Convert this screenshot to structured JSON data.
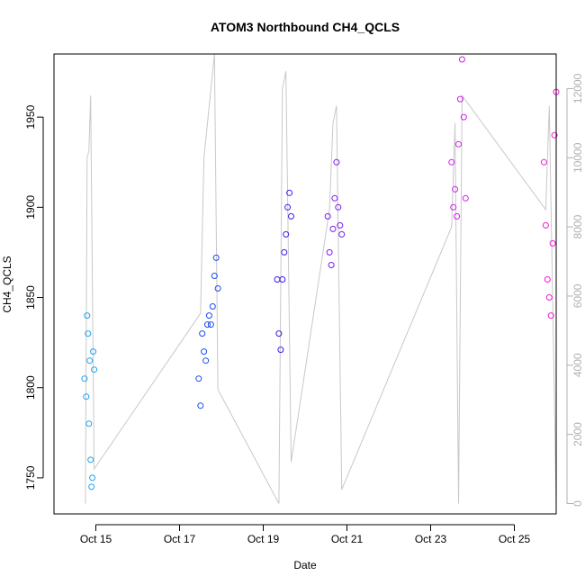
{
  "chart_data": {
    "type": "scatter",
    "title": "ATOM3 Northbound CH4_QCLS",
    "xlabel": "Date",
    "ylabel": "CH4_QCLS",
    "x_ticks": [
      "Oct 15",
      "Oct 17",
      "Oct 19",
      "Oct 21",
      "Oct 23",
      "Oct 25"
    ],
    "x_range": [
      "2017-10-14 00:00",
      "2017-10-26 00:00"
    ],
    "ylim": [
      1730,
      1985
    ],
    "y_ticks_left": [
      1750,
      1800,
      1850,
      1900,
      1950
    ],
    "y2lim": [
      -300,
      13000
    ],
    "y_ticks_right": [
      0,
      2000,
      4000,
      6000,
      8000,
      10000,
      12000
    ],
    "series": [
      {
        "color": "#1f9ff0",
        "points": [
          [
            "2017-10-14 17:30",
            1805
          ],
          [
            "2017-10-14 18:30",
            1795
          ],
          [
            "2017-10-14 19:00",
            1840
          ],
          [
            "2017-10-14 19:30",
            1830
          ],
          [
            "2017-10-14 20:00",
            1780
          ],
          [
            "2017-10-14 20:30",
            1815
          ],
          [
            "2017-10-14 21:00",
            1760
          ],
          [
            "2017-10-14 21:30",
            1745
          ],
          [
            "2017-10-14 22:00",
            1750
          ],
          [
            "2017-10-14 22:30",
            1820
          ],
          [
            "2017-10-14 23:00",
            1810
          ]
        ]
      },
      {
        "color": "#1a4bf0",
        "points": [
          [
            "2017-10-17 11:00",
            1805
          ],
          [
            "2017-10-17 12:00",
            1790
          ],
          [
            "2017-10-17 13:00",
            1830
          ],
          [
            "2017-10-17 14:00",
            1820
          ],
          [
            "2017-10-17 15:00",
            1815
          ],
          [
            "2017-10-17 16:00",
            1835
          ],
          [
            "2017-10-17 17:00",
            1840
          ],
          [
            "2017-10-17 18:00",
            1835
          ],
          [
            "2017-10-17 19:00",
            1845
          ],
          [
            "2017-10-17 20:00",
            1862
          ],
          [
            "2017-10-17 21:00",
            1872
          ],
          [
            "2017-10-17 22:00",
            1855
          ]
        ]
      },
      {
        "color": "#3a1af0",
        "points": [
          [
            "2017-10-19 08:00",
            1860
          ],
          [
            "2017-10-19 09:00",
            1830
          ],
          [
            "2017-10-19 10:00",
            1821
          ],
          [
            "2017-10-19 11:00",
            1860
          ],
          [
            "2017-10-19 12:00",
            1875
          ],
          [
            "2017-10-19 13:00",
            1885
          ],
          [
            "2017-10-19 14:00",
            1900
          ],
          [
            "2017-10-19 15:00",
            1908
          ],
          [
            "2017-10-19 16:00",
            1895
          ]
        ]
      },
      {
        "color": "#7a1af0",
        "points": [
          [
            "2017-10-20 13:00",
            1895
          ],
          [
            "2017-10-20 14:00",
            1875
          ],
          [
            "2017-10-20 15:00",
            1868
          ],
          [
            "2017-10-20 16:00",
            1888
          ],
          [
            "2017-10-20 17:00",
            1905
          ],
          [
            "2017-10-20 18:00",
            1925
          ],
          [
            "2017-10-20 19:00",
            1900
          ],
          [
            "2017-10-20 20:00",
            1890
          ],
          [
            "2017-10-20 21:00",
            1885
          ]
        ]
      },
      {
        "color": "#d21aee",
        "points": [
          [
            "2017-10-23 12:00",
            1925
          ],
          [
            "2017-10-23 13:00",
            1900
          ],
          [
            "2017-10-23 14:00",
            1910
          ],
          [
            "2017-10-23 15:00",
            1895
          ],
          [
            "2017-10-23 16:00",
            1935
          ],
          [
            "2017-10-23 17:00",
            1960
          ],
          [
            "2017-10-23 18:00",
            1982
          ],
          [
            "2017-10-23 19:00",
            1950
          ],
          [
            "2017-10-23 20:00",
            1905
          ]
        ]
      },
      {
        "color": "#ee1ad2",
        "points": [
          [
            "2017-10-25 17:00",
            1925
          ],
          [
            "2017-10-25 18:00",
            1890
          ],
          [
            "2017-10-25 19:00",
            1860
          ],
          [
            "2017-10-25 20:00",
            1850
          ],
          [
            "2017-10-25 21:00",
            1840
          ],
          [
            "2017-10-25 22:00",
            1880
          ],
          [
            "2017-10-25 23:00",
            1940
          ],
          [
            "2017-10-26 00:00",
            1964
          ]
        ]
      }
    ],
    "secondary_line": {
      "color": "#c8c8c8",
      "points": [
        [
          "2017-10-14 18:00",
          0
        ],
        [
          "2017-10-14 19:00",
          10000
        ],
        [
          "2017-10-14 20:00",
          10200
        ],
        [
          "2017-10-14 21:00",
          11800
        ],
        [
          "2017-10-14 23:00",
          1000
        ],
        [
          "2017-10-17 12:00",
          5500
        ],
        [
          "2017-10-17 14:00",
          10000
        ],
        [
          "2017-10-17 16:00",
          11000
        ],
        [
          "2017-10-17 18:00",
          12000
        ],
        [
          "2017-10-17 20:00",
          13000
        ],
        [
          "2017-10-17 22:00",
          3300
        ],
        [
          "2017-10-19 09:00",
          0
        ],
        [
          "2017-10-19 11:00",
          12000
        ],
        [
          "2017-10-19 13:00",
          12500
        ],
        [
          "2017-10-19 16:00",
          1200
        ],
        [
          "2017-10-20 14:00",
          8500
        ],
        [
          "2017-10-20 16:00",
          11000
        ],
        [
          "2017-10-20 18:00",
          11500
        ],
        [
          "2017-10-20 21:00",
          400
        ],
        [
          "2017-10-23 12:00",
          8000
        ],
        [
          "2017-10-23 14:00",
          11000
        ],
        [
          "2017-10-23 16:00",
          0
        ],
        [
          "2017-10-23 18:00",
          11800
        ],
        [
          "2017-10-25 18:00",
          8500
        ],
        [
          "2017-10-25 20:00",
          11500
        ],
        [
          "2017-10-26 00:00",
          0
        ]
      ]
    },
    "grid": false,
    "legend": "none"
  }
}
